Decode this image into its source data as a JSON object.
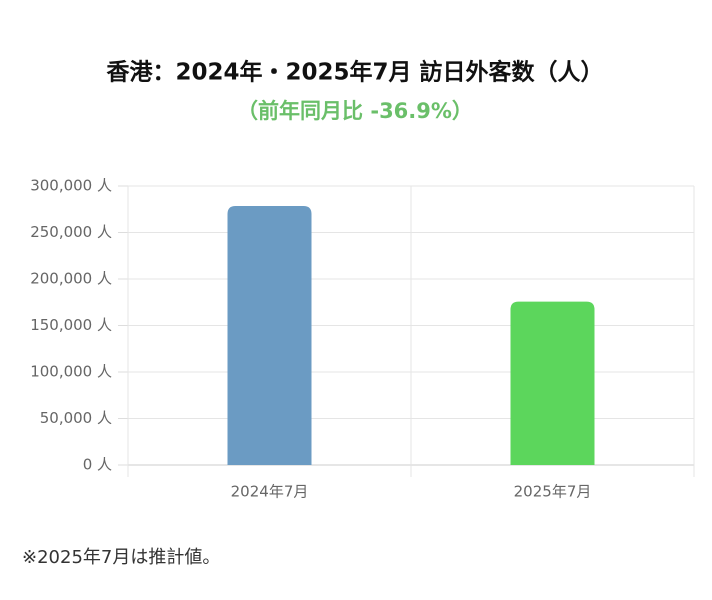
{
  "chart_data": {
    "type": "bar",
    "title": "香港：2024年・2025年7月 訪日外客数（人）",
    "subtitle": "（前年同月比 -36.9%）",
    "categories": [
      "2024年7月",
      "2025年7月"
    ],
    "values": [
      278500,
      175700
    ],
    "colors": [
      "#6b9bc3",
      "#5cd65c"
    ],
    "ylim": [
      0,
      300000
    ],
    "yticks": [
      {
        "value": 0,
        "label": "0 人"
      },
      {
        "value": 50000,
        "label": "50,000 人"
      },
      {
        "value": 100000,
        "label": "100,000 人"
      },
      {
        "value": 150000,
        "label": "150,000 人"
      },
      {
        "value": 200000,
        "label": "200,000 人"
      },
      {
        "value": 250000,
        "label": "250,000 人"
      },
      {
        "value": 300000,
        "label": "300,000 人"
      }
    ],
    "grid": true
  },
  "footnote": "※2025年7月は推計値。"
}
